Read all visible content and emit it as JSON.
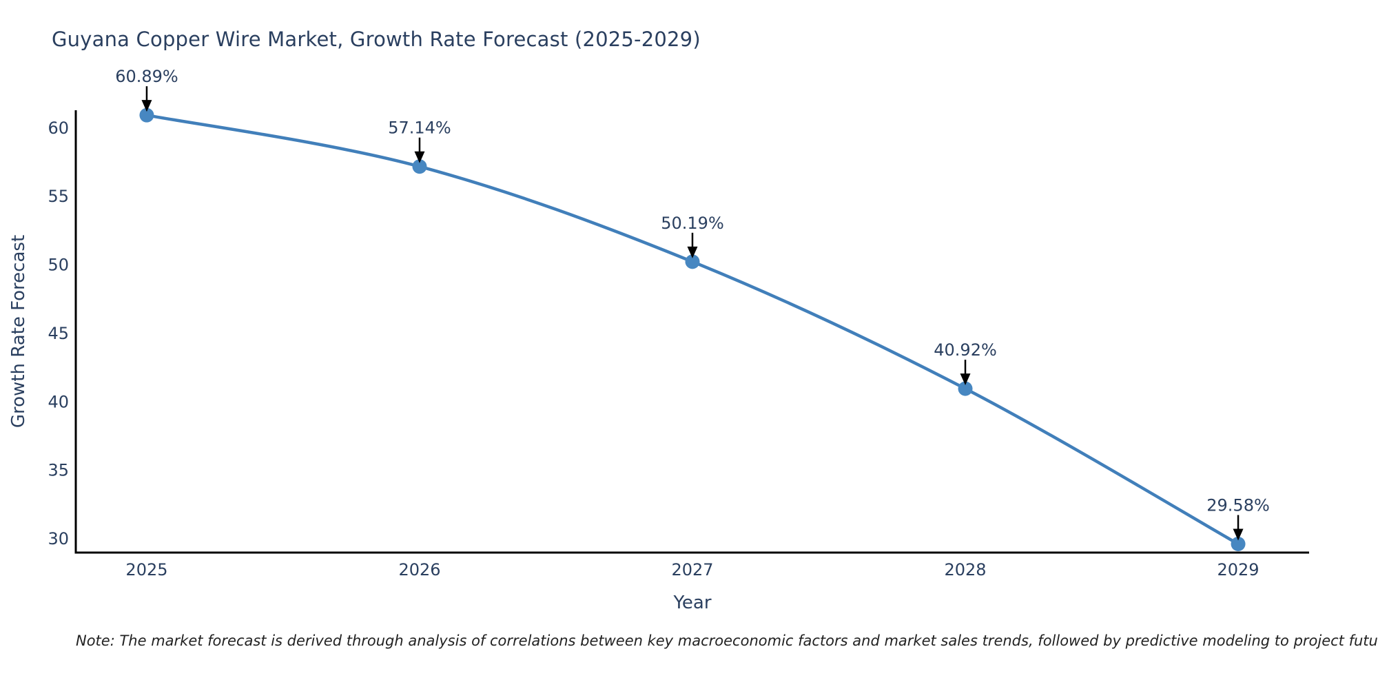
{
  "title": "Guyana Copper Wire Market, Growth Rate Forecast (2025-2029)",
  "note": "Note: The market forecast is derived through analysis of correlations between key macroeconomic factors and market sales trends, followed by predictive modeling to project future sales",
  "chart_data": {
    "type": "line",
    "title": "Guyana Copper Wire Market, Growth Rate Forecast (2025-2029)",
    "xlabel": "Year",
    "ylabel": "Growth Rate Forecast",
    "x": [
      2025,
      2026,
      2027,
      2028,
      2029
    ],
    "y": [
      60.89,
      57.14,
      50.19,
      40.92,
      29.58
    ],
    "labels": [
      "60.89%",
      "57.14%",
      "50.19%",
      "40.92%",
      "29.58%"
    ],
    "yticks": [
      30,
      35,
      40,
      45,
      50,
      55,
      60
    ],
    "xlim": [
      2024.74,
      2029.26
    ],
    "ylim": [
      28.95,
      61.25
    ],
    "grid": false,
    "legend": "none",
    "line_color": "#417fba",
    "marker_color": "#4787c1",
    "axis_color": "#000000",
    "annotation_color": "#000000"
  },
  "colors": {
    "title_text": "#2a3f5f",
    "axis_title_text": "#2a3f5f",
    "tick_text": "#2a3f5f",
    "annotation_text": "#2a3f5f",
    "note_text": "#222222",
    "background": "#ffffff"
  }
}
